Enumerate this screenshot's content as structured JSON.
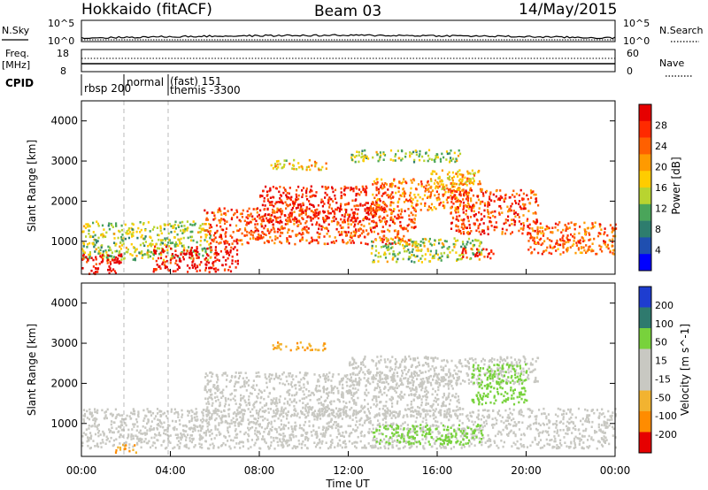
{
  "header": {
    "station": "Hokkaido (fitACF)",
    "beam": "Beam 03",
    "date": "14/May/2015"
  },
  "noise_panel": {
    "left_label": "N.Sky",
    "right_label": "N.Search",
    "left_ticks": [
      "10^5",
      "10^0"
    ],
    "right_ticks": [
      "10^5",
      "10^0"
    ]
  },
  "freq_panel": {
    "left_label": "Freq.",
    "left_unit": "[MHz]",
    "left_ticks": [
      "18",
      "8"
    ],
    "right_label": "Nave",
    "right_ticks": [
      "60",
      "0"
    ]
  },
  "cpid_panel": {
    "label": "CPID",
    "segments": [
      "rbsp 200",
      "normal",
      "(fast) 151",
      "themis -3300"
    ]
  },
  "x_axis": {
    "label": "Time UT",
    "ticks": [
      "00:00",
      "04:00",
      "08:00",
      "12:00",
      "16:00",
      "20:00",
      "00:00"
    ]
  },
  "chart_data": [
    {
      "type": "heatmap",
      "title": "",
      "xlabel": "Time UT",
      "ylabel": "Slant Range [km]",
      "xlim": [
        0,
        24
      ],
      "ylim": [
        180,
        4500
      ],
      "y_ticks": [
        "1000",
        "2000",
        "3000",
        "4000"
      ],
      "colorbar": {
        "label": "Power [dB]",
        "ticks": [
          "28",
          "24",
          "20",
          "16",
          "12",
          "8",
          "4"
        ],
        "range": [
          0,
          30
        ]
      },
      "scatter_bands": [
        {
          "t0": 0.0,
          "t1": 5.8,
          "r0": 560,
          "r1": 1520,
          "level": 0.45
        },
        {
          "t0": 0.0,
          "t1": 1.8,
          "r0": 200,
          "r1": 700,
          "level": 0.95
        },
        {
          "t0": 3.2,
          "t1": 7.0,
          "r0": 260,
          "r1": 900,
          "level": 0.92
        },
        {
          "t0": 5.5,
          "t1": 15.0,
          "r0": 950,
          "r1": 1850,
          "level": 0.8
        },
        {
          "t0": 8.0,
          "t1": 14.0,
          "r0": 1500,
          "r1": 2400,
          "level": 0.88
        },
        {
          "t0": 13.0,
          "t1": 17.5,
          "r0": 1800,
          "r1": 2600,
          "level": 0.7
        },
        {
          "t0": 15.5,
          "t1": 18.0,
          "r0": 2300,
          "r1": 2800,
          "level": 0.6
        },
        {
          "t0": 16.5,
          "t1": 20.5,
          "r0": 1200,
          "r1": 2300,
          "level": 0.82
        },
        {
          "t0": 20.0,
          "t1": 24.0,
          "r0": 700,
          "r1": 1500,
          "level": 0.75
        },
        {
          "t0": 13.0,
          "t1": 18.0,
          "r0": 500,
          "r1": 1100,
          "level": 0.45
        },
        {
          "t0": 8.5,
          "t1": 11.0,
          "r0": 2800,
          "r1": 3050,
          "level": 0.55
        },
        {
          "t0": 12.0,
          "t1": 17.0,
          "r0": 3000,
          "r1": 3300,
          "level": 0.45
        },
        {
          "t0": 17.0,
          "t1": 18.5,
          "r0": 600,
          "r1": 850,
          "level": 0.92
        }
      ]
    },
    {
      "type": "heatmap",
      "title": "",
      "xlabel": "Time UT",
      "ylabel": "Slant Range [km]",
      "xlim": [
        0,
        24
      ],
      "ylim": [
        180,
        4500
      ],
      "y_ticks": [
        "1000",
        "2000",
        "3000",
        "4000"
      ],
      "colorbar": {
        "label": "Velocity [m s^-1]",
        "ticks": [
          "200",
          "100",
          "50",
          "15",
          "-15",
          "-50",
          "-100",
          "-200"
        ],
        "range": [
          -250,
          250
        ]
      },
      "scatter_bands": [
        {
          "t0": 0.0,
          "t1": 24.0,
          "r0": 400,
          "r1": 1400,
          "vel": 0
        },
        {
          "t0": 5.5,
          "t1": 17.0,
          "r0": 1200,
          "r1": 2300,
          "vel": 0
        },
        {
          "t0": 12.0,
          "t1": 20.5,
          "r0": 2000,
          "r1": 2700,
          "vel": 0
        },
        {
          "t0": 13.0,
          "t1": 18.0,
          "r0": 500,
          "r1": 1000,
          "vel": 45
        },
        {
          "t0": 17.5,
          "t1": 20.0,
          "r0": 1500,
          "r1": 2500,
          "vel": 45
        },
        {
          "t0": 8.5,
          "t1": 11.0,
          "r0": 2850,
          "r1": 3050,
          "vel": -35
        },
        {
          "t0": 1.5,
          "t1": 2.5,
          "r0": 300,
          "r1": 500,
          "vel": -40
        }
      ]
    }
  ]
}
